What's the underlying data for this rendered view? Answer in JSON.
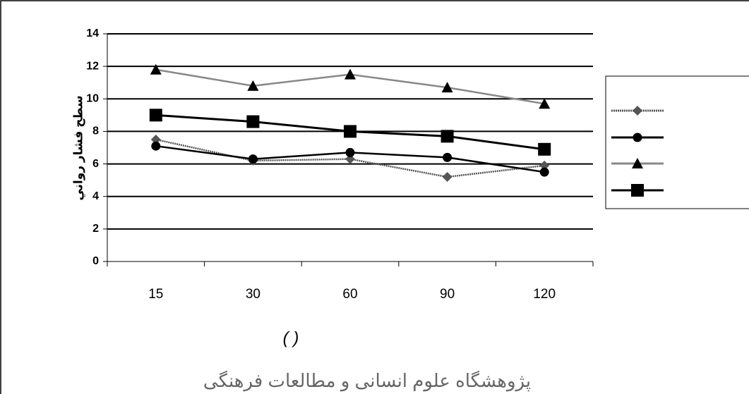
{
  "chart_data": {
    "type": "line",
    "y_label": "سطح فشار رواني",
    "x_label": "(   )",
    "watermark": "پژوهشگاه علوم انسانی و مطالعات فرهنگی",
    "categories": [
      "15",
      "30",
      "60",
      "90",
      "120"
    ],
    "series": [
      {
        "marker": "diamond",
        "color": "#555555",
        "dashed": true,
        "values": [
          7.5,
          6.2,
          6.3,
          5.2,
          5.9
        ]
      },
      {
        "marker": "circle",
        "color": "#000000",
        "values": [
          7.1,
          6.3,
          6.7,
          6.4,
          5.5
        ]
      },
      {
        "marker": "triangle",
        "color": "#888888",
        "values": [
          11.8,
          10.8,
          11.5,
          10.7,
          9.7
        ]
      },
      {
        "marker": "square",
        "color": "#000000",
        "values": [
          9.0,
          8.6,
          8.0,
          7.7,
          6.9
        ]
      }
    ],
    "ylim": [
      0,
      14
    ],
    "yticks": [
      0,
      2,
      4,
      6,
      8,
      10,
      12,
      14
    ],
    "grid": true,
    "legend": "right"
  }
}
